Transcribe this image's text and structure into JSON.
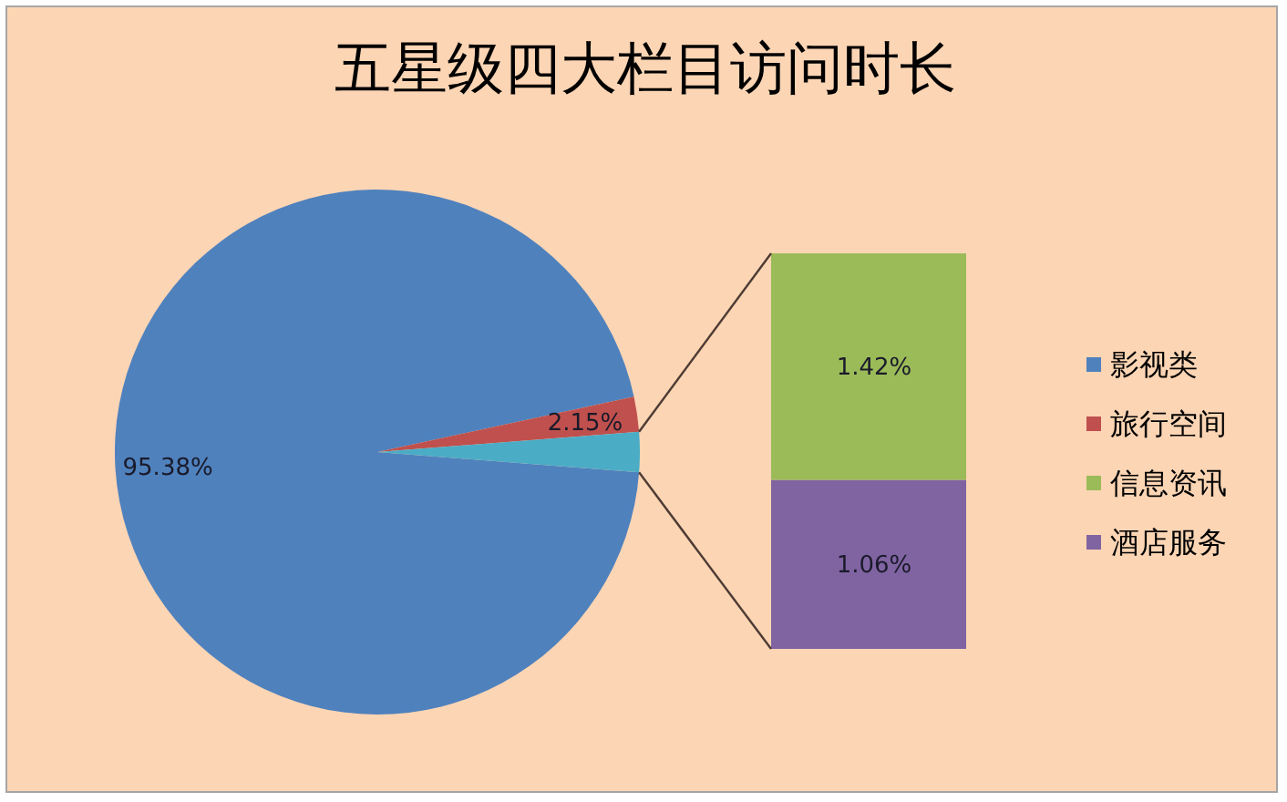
{
  "chart_data": [
    {
      "type": "pie",
      "title": "五星级四大栏目访问时长",
      "categories": [
        "影视类",
        "旅行空间",
        null
      ],
      "values": [
        95.38,
        2.15,
        2.47
      ],
      "colors": [
        "#4f81bd",
        "#c0504d",
        "#4bacc6"
      ],
      "value_labels": [
        "95.38%",
        "2.15%",
        null
      ],
      "legend": "right"
    },
    {
      "type": "bar",
      "stacked": true,
      "categories": [
        null
      ],
      "series": [
        {
          "name": "酒店服务",
          "color": "#8064a2",
          "values": [
            1.06
          ],
          "value_labels": [
            "1.06%"
          ]
        },
        {
          "name": "信息资讯",
          "color": "#9bbb59",
          "values": [
            1.42
          ],
          "value_labels": [
            "1.42%"
          ]
        }
      ],
      "legend": "right"
    }
  ]
}
